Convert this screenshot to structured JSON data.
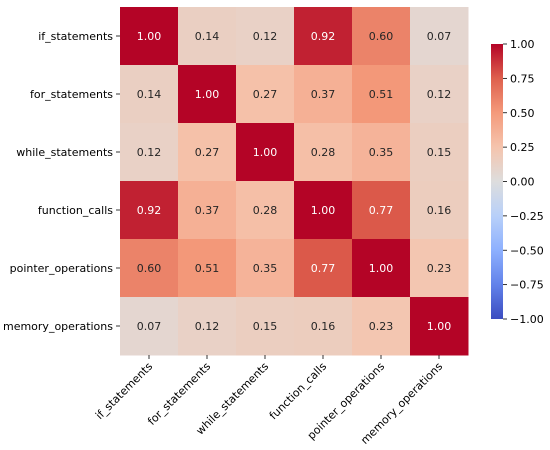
{
  "chart_data": {
    "type": "heatmap",
    "title": "",
    "xlabel": "",
    "ylabel": "",
    "labels": [
      "if_statements",
      "for_statements",
      "while_statements",
      "function_calls",
      "pointer_operations",
      "memory_operations"
    ],
    "matrix": [
      [
        1.0,
        0.14,
        0.12,
        0.92,
        0.6,
        0.07
      ],
      [
        0.14,
        1.0,
        0.27,
        0.37,
        0.51,
        0.12
      ],
      [
        0.12,
        0.27,
        1.0,
        0.28,
        0.35,
        0.15
      ],
      [
        0.92,
        0.37,
        0.28,
        1.0,
        0.77,
        0.16
      ],
      [
        0.6,
        0.51,
        0.35,
        0.77,
        1.0,
        0.23
      ],
      [
        0.07,
        0.12,
        0.15,
        0.16,
        0.23,
        1.0
      ]
    ],
    "value_format": "2 decimals",
    "colormap": "coolwarm",
    "colorbar": {
      "vmin": -1.0,
      "vmax": 1.0,
      "ticks": [
        1.0,
        0.75,
        0.5,
        0.25,
        0.0,
        -0.25,
        -0.5,
        -0.75,
        -1.0
      ],
      "tick_labels": [
        "1.00",
        "0.75",
        "0.50",
        "0.25",
        "0.00",
        "−0.25",
        "−0.50",
        "−0.75",
        "−1.00"
      ]
    },
    "x_tick_rotation": "45 degrees",
    "colors": {
      "low": "#3b4cc0",
      "mid": "#dddddd",
      "high": "#b40426"
    }
  }
}
